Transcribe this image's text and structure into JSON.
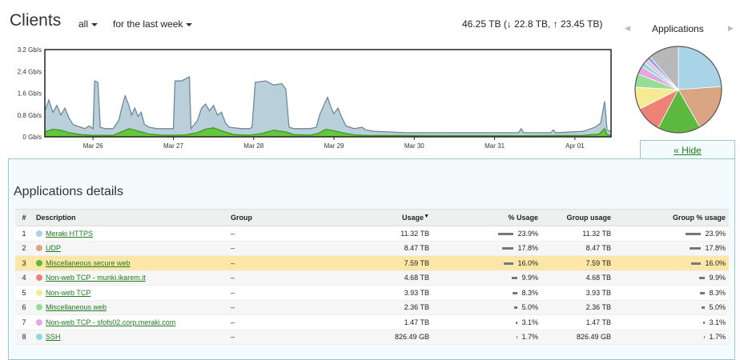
{
  "header": {
    "title": "Clients",
    "filter_label": "all",
    "period_label": "for the last week",
    "summary": "46.25 TB (↓ 22.8 TB, ↑ 23.45 TB)"
  },
  "pie": {
    "title": "Applications",
    "prev_icon": "chevron-left-icon",
    "next_icon": "chevron-right-icon",
    "slices": [
      {
        "value": 23.9,
        "color": "#a9d3e6"
      },
      {
        "value": 17.8,
        "color": "#d9a582"
      },
      {
        "value": 16.0,
        "color": "#5db83e"
      },
      {
        "value": 9.9,
        "color": "#ee8277"
      },
      {
        "value": 8.3,
        "color": "#f6eb94"
      },
      {
        "value": 5.0,
        "color": "#96dd96"
      },
      {
        "value": 3.1,
        "color": "#e6a6e6"
      },
      {
        "value": 1.7,
        "color": "#8cdcdc"
      },
      {
        "value": 1.6,
        "color": "#e8c0dc"
      },
      {
        "value": 1.4,
        "color": "#8fa6e8"
      },
      {
        "value": 11.3,
        "color": "#b8b8b8"
      }
    ]
  },
  "chart_data": {
    "type": "area",
    "y_tick_labels": [
      "3.2 Gb/s",
      "2.4 Gb/s",
      "1.6 Gb/s",
      "0.8 Gb/s",
      "0 Gb/s"
    ],
    "ylim": [
      0,
      3.2
    ],
    "x_tick_labels": [
      "Mar 26",
      "Mar 27",
      "Mar 28",
      "Mar 29",
      "Mar 30",
      "Mar 31",
      "Apr 01"
    ],
    "xlim": [
      0,
      7.05
    ],
    "x_ticks": [
      0.6,
      1.6,
      2.6,
      3.6,
      4.6,
      5.6,
      6.6
    ],
    "grid": false,
    "series": [
      {
        "color": "#b9cfd9",
        "line_color": "#6d8a9a",
        "points": [
          [
            0,
            0.95
          ],
          [
            0.05,
            1.35
          ],
          [
            0.1,
            0.9
          ],
          [
            0.15,
            1.15
          ],
          [
            0.2,
            0.8
          ],
          [
            0.25,
            1.05
          ],
          [
            0.3,
            0.7
          ],
          [
            0.35,
            0.45
          ],
          [
            0.4,
            0.4
          ],
          [
            0.45,
            0.35
          ],
          [
            0.5,
            0.3
          ],
          [
            0.55,
            0.4
          ],
          [
            0.6,
            0.3
          ],
          [
            0.62,
            2.05
          ],
          [
            0.66,
            2.0
          ],
          [
            0.69,
            0.35
          ],
          [
            0.75,
            0.3
          ],
          [
            0.85,
            0.3
          ],
          [
            0.92,
            0.6
          ],
          [
            0.96,
            1.1
          ],
          [
            1.0,
            1.5
          ],
          [
            1.04,
            1.2
          ],
          [
            1.08,
            0.8
          ],
          [
            1.12,
            1.05
          ],
          [
            1.16,
            0.75
          ],
          [
            1.2,
            0.9
          ],
          [
            1.24,
            0.45
          ],
          [
            1.3,
            0.35
          ],
          [
            1.4,
            0.3
          ],
          [
            1.52,
            0.3
          ],
          [
            1.6,
            0.3
          ],
          [
            1.62,
            2.05
          ],
          [
            1.7,
            2.05
          ],
          [
            1.8,
            2.2
          ],
          [
            1.82,
            0.3
          ],
          [
            1.9,
            0.6
          ],
          [
            1.95,
            1.05
          ],
          [
            2.0,
            1.2
          ],
          [
            2.05,
            0.95
          ],
          [
            2.1,
            1.15
          ],
          [
            2.15,
            0.8
          ],
          [
            2.2,
            0.9
          ],
          [
            2.25,
            0.5
          ],
          [
            2.3,
            0.35
          ],
          [
            2.45,
            0.3
          ],
          [
            2.55,
            0.3
          ],
          [
            2.58,
            0.35
          ],
          [
            2.62,
            2.0
          ],
          [
            2.75,
            2.05
          ],
          [
            2.85,
            1.9
          ],
          [
            2.95,
            1.95
          ],
          [
            3.0,
            1.75
          ],
          [
            3.04,
            0.35
          ],
          [
            3.1,
            0.3
          ],
          [
            3.3,
            0.3
          ],
          [
            3.38,
            0.35
          ],
          [
            3.42,
            0.8
          ],
          [
            3.48,
            1.2
          ],
          [
            3.52,
            1.45
          ],
          [
            3.56,
            1.1
          ],
          [
            3.6,
            0.85
          ],
          [
            3.65,
            1.05
          ],
          [
            3.7,
            0.7
          ],
          [
            3.75,
            0.4
          ],
          [
            3.85,
            0.3
          ],
          [
            3.95,
            0.35
          ],
          [
            4.0,
            0.25
          ],
          [
            4.1,
            0.2
          ],
          [
            4.5,
            0.15
          ],
          [
            5.0,
            0.15
          ],
          [
            5.5,
            0.15
          ],
          [
            5.9,
            0.15
          ],
          [
            5.93,
            0.3
          ],
          [
            5.96,
            0.15
          ],
          [
            6.3,
            0.15
          ],
          [
            6.33,
            0.25
          ],
          [
            6.36,
            0.15
          ],
          [
            6.7,
            0.2
          ],
          [
            6.85,
            0.35
          ],
          [
            6.92,
            0.5
          ],
          [
            6.97,
            1.3
          ],
          [
            7.0,
            0.25
          ],
          [
            7.05,
            0.2
          ]
        ]
      },
      {
        "color": "#64c73c",
        "line_color": "#3e9a22",
        "points": [
          [
            0,
            0.18
          ],
          [
            0.1,
            0.28
          ],
          [
            0.2,
            0.24
          ],
          [
            0.3,
            0.15
          ],
          [
            0.45,
            0.08
          ],
          [
            0.6,
            0.05
          ],
          [
            0.7,
            0.06
          ],
          [
            0.85,
            0.05
          ],
          [
            0.95,
            0.18
          ],
          [
            1.05,
            0.3
          ],
          [
            1.15,
            0.22
          ],
          [
            1.3,
            0.1
          ],
          [
            1.45,
            0.06
          ],
          [
            1.6,
            0.06
          ],
          [
            1.75,
            0.07
          ],
          [
            1.9,
            0.15
          ],
          [
            2.0,
            0.28
          ],
          [
            2.1,
            0.33
          ],
          [
            2.2,
            0.22
          ],
          [
            2.35,
            0.08
          ],
          [
            2.55,
            0.06
          ],
          [
            2.7,
            0.12
          ],
          [
            2.85,
            0.24
          ],
          [
            3.0,
            0.18
          ],
          [
            3.1,
            0.08
          ],
          [
            3.3,
            0.06
          ],
          [
            3.4,
            0.12
          ],
          [
            3.5,
            0.28
          ],
          [
            3.6,
            0.22
          ],
          [
            3.7,
            0.15
          ],
          [
            3.85,
            0.07
          ],
          [
            4.0,
            0.05
          ],
          [
            5.0,
            0.04
          ],
          [
            6.0,
            0.04
          ],
          [
            6.7,
            0.05
          ],
          [
            6.9,
            0.1
          ],
          [
            6.97,
            0.3
          ],
          [
            7.0,
            0.08
          ],
          [
            7.05,
            0.04
          ]
        ]
      }
    ]
  },
  "hide_link": "« Hide",
  "details": {
    "title": "Applications details",
    "columns": [
      "#",
      "Description",
      "Group",
      "Usage",
      "% Usage",
      "Group usage",
      "Group % usage"
    ],
    "sort_icon": "sort-desc-icon",
    "rows": [
      {
        "idx": "1",
        "desc": "Meraki HTTPS",
        "color": "#a9d3e6",
        "group": "–",
        "usage": "11.32 TB",
        "pct": "23.9%",
        "pct_value": 23.9,
        "group_usage": "11.32 TB",
        "group_pct": "23.9%"
      },
      {
        "idx": "2",
        "desc": "UDP",
        "color": "#d9a582",
        "group": "–",
        "usage": "8.47 TB",
        "pct": "17.8%",
        "pct_value": 17.8,
        "group_usage": "8.47 TB",
        "group_pct": "17.8%"
      },
      {
        "idx": "3",
        "desc": "Miscellaneous secure web",
        "color": "#5db83e",
        "group": "–",
        "usage": "7.59 TB",
        "pct": "16.0%",
        "pct_value": 16.0,
        "group_usage": "7.59 TB",
        "group_pct": "16.0%"
      },
      {
        "idx": "4",
        "desc": "Non-web TCP - munki.ikarem.it",
        "color": "#ee8277",
        "group": "–",
        "usage": "4.68 TB",
        "pct": "9.9%",
        "pct_value": 9.9,
        "group_usage": "4.68 TB",
        "group_pct": "9.9%"
      },
      {
        "idx": "5",
        "desc": "Non-web TCP",
        "color": "#f6eb94",
        "group": "–",
        "usage": "3.93 TB",
        "pct": "8.3%",
        "pct_value": 8.3,
        "group_usage": "3.93 TB",
        "group_pct": "8.3%"
      },
      {
        "idx": "6",
        "desc": "Miscellaneous web",
        "color": "#96dd96",
        "group": "–",
        "usage": "2.36 TB",
        "pct": "5.0%",
        "pct_value": 5.0,
        "group_usage": "2.36 TB",
        "group_pct": "5.0%"
      },
      {
        "idx": "7",
        "desc": "Non-web TCP - sfofs02.corp.meraki.com",
        "color": "#e6a6e6",
        "group": "–",
        "usage": "1.47 TB",
        "pct": "3.1%",
        "pct_value": 3.1,
        "group_usage": "1.47 TB",
        "group_pct": "3.1%"
      },
      {
        "idx": "8",
        "desc": "SSH",
        "color": "#8cdcdc",
        "group": "–",
        "usage": "826.49 GB",
        "pct": "1.7%",
        "pct_value": 1.7,
        "group_usage": "826.49 GB",
        "group_pct": "1.7%"
      }
    ]
  }
}
